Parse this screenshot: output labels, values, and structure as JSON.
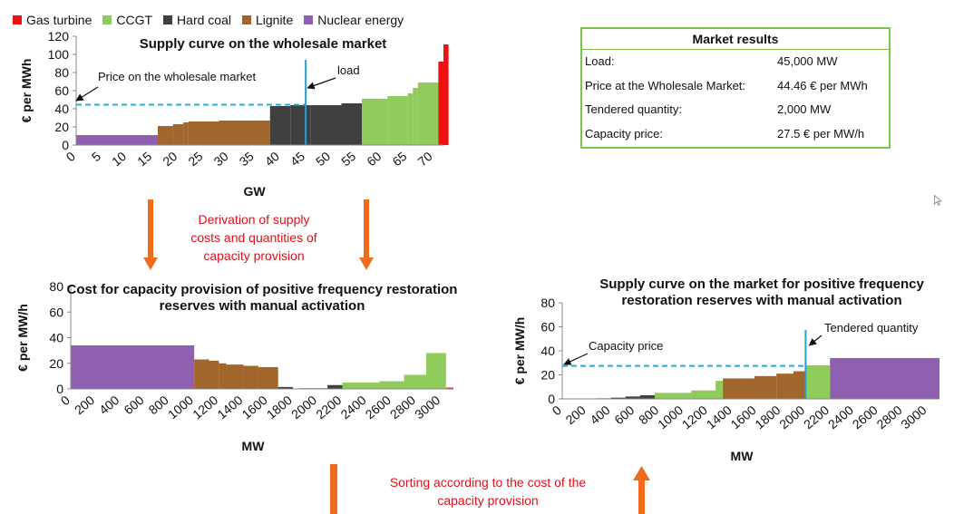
{
  "legend": [
    {
      "name": "Gas turbine",
      "color": "#ee1111"
    },
    {
      "name": "CCGT",
      "color": "#8fcc5c"
    },
    {
      "name": "Hard coal",
      "color": "#404040"
    },
    {
      "name": "Lignite",
      "color": "#a0662b"
    },
    {
      "name": "Nuclear energy",
      "color": "#9060b0"
    }
  ],
  "results": {
    "title": "Market results",
    "rows": [
      {
        "label": "Load:",
        "value": "45,000 MW"
      },
      {
        "label": "Price at the Wholesale Market:",
        "value": "44.46 € per MWh"
      },
      {
        "label": "Tendered quantity:",
        "value": "2,000 MW"
      },
      {
        "label": "Capacity price:",
        "value": "27.5 € per MW/h"
      }
    ]
  },
  "annotations": {
    "derivation": [
      "Derivation of supply",
      "costs and quantities of",
      "capacity provision"
    ],
    "sorting": [
      "Sorting according to the cost of the",
      "capacity provision"
    ]
  },
  "colors": {
    "arrow": "#f26b1d",
    "vline": "#1fa2d8",
    "dashed": "#1fb2e0"
  },
  "chart_data": [
    {
      "type": "bar",
      "title": "Supply curve on the wholesale market",
      "xlabel": "GW",
      "ylabel": "€ per MWh",
      "xlim": [
        0,
        72
      ],
      "ylim": [
        0,
        120
      ],
      "xticks": [
        "0",
        "5",
        "10",
        "15",
        "20",
        "25",
        "30",
        "35",
        "40",
        "45",
        "50",
        "55",
        "60",
        "65",
        "70"
      ],
      "yticks": [
        "0",
        "20",
        "40",
        "60",
        "80",
        "100",
        "120"
      ],
      "segments": [
        {
          "x0": 0,
          "x1": 16,
          "value": 11,
          "color": "#9060b0"
        },
        {
          "x0": 16,
          "x1": 19,
          "value": 21,
          "color": "#a0662b"
        },
        {
          "x0": 19,
          "x1": 21,
          "value": 23,
          "color": "#a0662b"
        },
        {
          "x0": 21,
          "x1": 22,
          "value": 25,
          "color": "#a0662b"
        },
        {
          "x0": 22,
          "x1": 28,
          "value": 26,
          "color": "#a0662b"
        },
        {
          "x0": 28,
          "x1": 38,
          "value": 27,
          "color": "#a0662b"
        },
        {
          "x0": 38,
          "x1": 42,
          "value": 43,
          "color": "#404040"
        },
        {
          "x0": 42,
          "x1": 46,
          "value": 44,
          "color": "#404040"
        },
        {
          "x0": 46,
          "x1": 52,
          "value": 44,
          "color": "#404040"
        },
        {
          "x0": 52,
          "x1": 56,
          "value": 46,
          "color": "#404040"
        },
        {
          "x0": 56,
          "x1": 61,
          "value": 51,
          "color": "#8fcc5c"
        },
        {
          "x0": 61,
          "x1": 65,
          "value": 54,
          "color": "#8fcc5c"
        },
        {
          "x0": 65,
          "x1": 66,
          "value": 57,
          "color": "#8fcc5c"
        },
        {
          "x0": 66,
          "x1": 67,
          "value": 63,
          "color": "#8fcc5c"
        },
        {
          "x0": 67,
          "x1": 71,
          "value": 69,
          "color": "#8fcc5c"
        },
        {
          "x0": 71,
          "x1": 72,
          "value": 92,
          "color": "#ee1111"
        },
        {
          "x0": 72,
          "x1": 73,
          "value": 111,
          "color": "#ee1111"
        }
      ],
      "price_line": {
        "label": "Price on the wholesale market",
        "value": 44.46
      },
      "load_line": {
        "label": "load",
        "x": 45
      }
    },
    {
      "type": "bar",
      "title": "Cost for capacity provision of positive frequency restoration reserves with manual activation",
      "xlabel": "MW",
      "ylabel": "€ per MW/h",
      "xlim": [
        0,
        3100
      ],
      "ylim": [
        0,
        80
      ],
      "xticks": [
        "0",
        "200",
        "400",
        "600",
        "800",
        "1000",
        "1200",
        "1400",
        "1600",
        "1800",
        "2000",
        "2200",
        "2400",
        "2600",
        "2800",
        "3000"
      ],
      "yticks": [
        "0",
        "20",
        "40",
        "60",
        "80"
      ],
      "segments": [
        {
          "x0": 0,
          "x1": 1000,
          "value": 34,
          "color": "#9060b0"
        },
        {
          "x0": 1000,
          "x1": 1120,
          "value": 23,
          "color": "#a0662b"
        },
        {
          "x0": 1120,
          "x1": 1200,
          "value": 22,
          "color": "#a0662b"
        },
        {
          "x0": 1200,
          "x1": 1260,
          "value": 20,
          "color": "#a0662b"
        },
        {
          "x0": 1260,
          "x1": 1400,
          "value": 19,
          "color": "#a0662b"
        },
        {
          "x0": 1400,
          "x1": 1520,
          "value": 18,
          "color": "#a0662b"
        },
        {
          "x0": 1520,
          "x1": 1680,
          "value": 17,
          "color": "#a0662b"
        },
        {
          "x0": 1680,
          "x1": 1800,
          "value": 1.5,
          "color": "#404040"
        },
        {
          "x0": 1850,
          "x1": 2080,
          "value": 0.5,
          "color": "#404040"
        },
        {
          "x0": 2080,
          "x1": 2200,
          "value": 3,
          "color": "#404040"
        },
        {
          "x0": 2200,
          "x1": 2500,
          "value": 5,
          "color": "#8fcc5c"
        },
        {
          "x0": 2500,
          "x1": 2700,
          "value": 6,
          "color": "#8fcc5c"
        },
        {
          "x0": 2700,
          "x1": 2880,
          "value": 11,
          "color": "#8fcc5c"
        },
        {
          "x0": 2880,
          "x1": 3040,
          "value": 28,
          "color": "#8fcc5c"
        },
        {
          "x0": 3040,
          "x1": 3100,
          "value": 1,
          "color": "#ee1111"
        }
      ]
    },
    {
      "type": "bar",
      "title": "Supply curve on the market for positive frequency restoration reserves with manual activation",
      "xlabel": "MW",
      "ylabel": "€ per MW/h",
      "xlim": [
        0,
        3100
      ],
      "ylim": [
        0,
        80
      ],
      "xticks": [
        "0",
        "200",
        "400",
        "600",
        "800",
        "1000",
        "1200",
        "1400",
        "1600",
        "1800",
        "2000",
        "2200",
        "2400",
        "2600",
        "2800",
        "3000"
      ],
      "yticks": [
        "0",
        "20",
        "40",
        "60",
        "80"
      ],
      "segments": [
        {
          "x0": 280,
          "x1": 400,
          "value": 0.5,
          "color": "#ee1111"
        },
        {
          "x0": 400,
          "x1": 520,
          "value": 1,
          "color": "#404040"
        },
        {
          "x0": 520,
          "x1": 640,
          "value": 2,
          "color": "#404040"
        },
        {
          "x0": 640,
          "x1": 760,
          "value": 3,
          "color": "#404040"
        },
        {
          "x0": 760,
          "x1": 1060,
          "value": 5,
          "color": "#8fcc5c"
        },
        {
          "x0": 1060,
          "x1": 1260,
          "value": 7,
          "color": "#8fcc5c"
        },
        {
          "x0": 1260,
          "x1": 1320,
          "value": 15,
          "color": "#8fcc5c"
        },
        {
          "x0": 1320,
          "x1": 1580,
          "value": 17,
          "color": "#a0662b"
        },
        {
          "x0": 1580,
          "x1": 1760,
          "value": 19,
          "color": "#a0662b"
        },
        {
          "x0": 1760,
          "x1": 1900,
          "value": 21,
          "color": "#a0662b"
        },
        {
          "x0": 1900,
          "x1": 2000,
          "value": 23,
          "color": "#a0662b"
        },
        {
          "x0": 2000,
          "x1": 2200,
          "value": 28,
          "color": "#8fcc5c"
        },
        {
          "x0": 2200,
          "x1": 3100,
          "value": 34,
          "color": "#9060b0"
        }
      ],
      "price_line": {
        "label": "Capacity price",
        "value": 27.5
      },
      "quantity_line": {
        "label": "Tendered quantity",
        "x": 2000
      }
    }
  ]
}
